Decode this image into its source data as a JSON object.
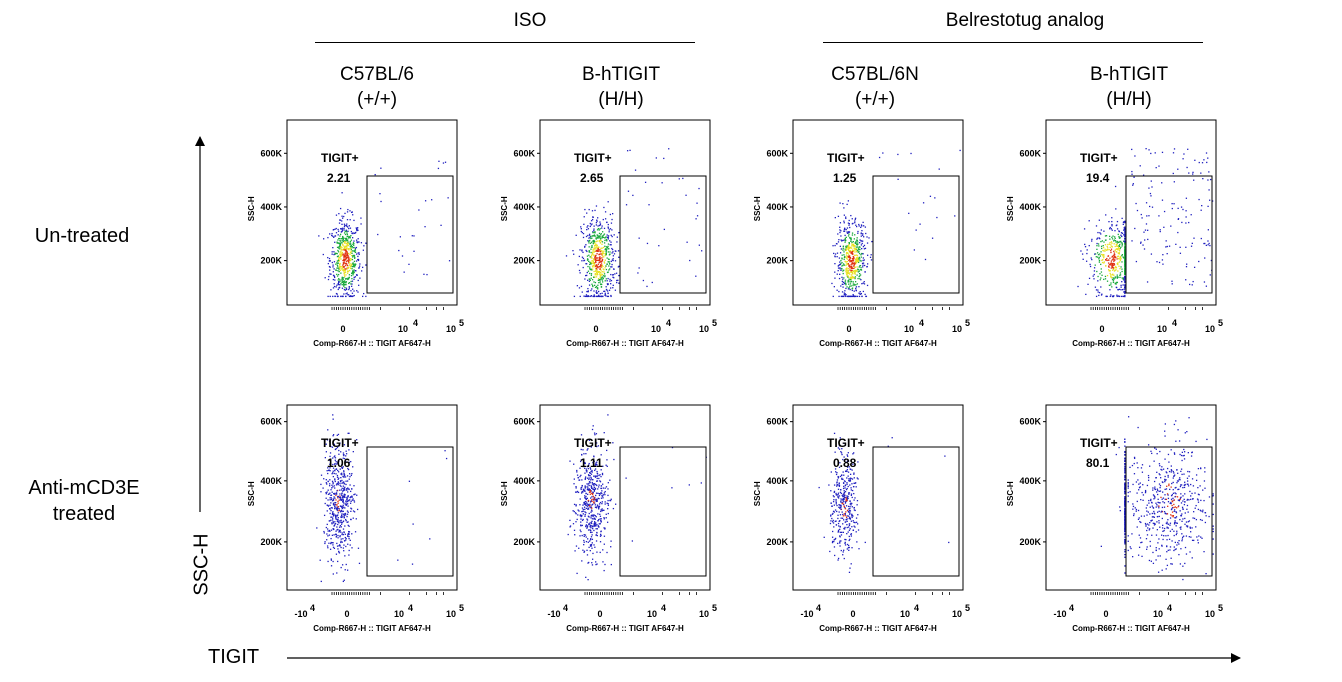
{
  "groups": [
    {
      "label": "ISO"
    },
    {
      "label": "Belrestotug analog"
    }
  ],
  "columns": [
    {
      "line1": "C57BL/6",
      "line2": "(+/+)"
    },
    {
      "line1": "B-hTIGIT",
      "line2": "(H/H)"
    },
    {
      "line1": "C57BL/6N",
      "line2": "(+/+)"
    },
    {
      "line1": "B-hTIGIT",
      "line2": "(H/H)"
    }
  ],
  "rows": [
    {
      "line1": "Un-treated",
      "line2": ""
    },
    {
      "line1": "Anti-mCD3E",
      "line2": "treated"
    }
  ],
  "axes": {
    "y_caption": "SSC-H",
    "x_caption": "TIGIT",
    "panel_ylabel": "SSC-H",
    "panel_xlabel": "Comp-R667-H :: TIGIT AF647-H",
    "yticks": [
      "600K",
      "400K",
      "200K"
    ],
    "xticks_row1": [
      "0",
      "10",
      "10"
    ],
    "xticks_row2": [
      "-10",
      "0",
      "10",
      "10"
    ],
    "tick_exponent_4": "4",
    "tick_exponent_5": "5"
  },
  "gate_label": "TIGIT+",
  "colors": {
    "low": "#1f1fbf",
    "mid": "#18a83a",
    "high": "#e8e020",
    "peak": "#e03010"
  },
  "chart_data": {
    "type": "scatter",
    "subtype": "flow-cytometry-dot-plot",
    "ylim": [
      "0",
      "600K"
    ],
    "panels": [
      {
        "row": 0,
        "col": 0,
        "gate_pct": "2.21"
      },
      {
        "row": 0,
        "col": 1,
        "gate_pct": "2.65"
      },
      {
        "row": 0,
        "col": 2,
        "gate_pct": "1.25"
      },
      {
        "row": 0,
        "col": 3,
        "gate_pct": "19.4"
      },
      {
        "row": 1,
        "col": 0,
        "gate_pct": "1.06"
      },
      {
        "row": 1,
        "col": 1,
        "gate_pct": "1.11"
      },
      {
        "row": 1,
        "col": 2,
        "gate_pct": "0.88"
      },
      {
        "row": 1,
        "col": 3,
        "gate_pct": "80.1"
      }
    ]
  }
}
